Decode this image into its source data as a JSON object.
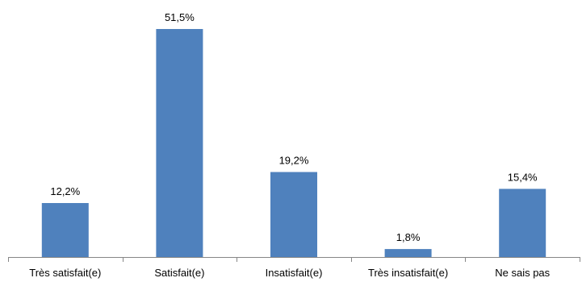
{
  "chart_data": {
    "type": "bar",
    "title": "",
    "xlabel": "",
    "ylabel": "",
    "categories": [
      "Très satisfait(e)",
      "Satisfait(e)",
      "Insatisfait(e)",
      "Très insatisfait(e)",
      "Ne sais pas"
    ],
    "values": [
      12.2,
      51.5,
      19.2,
      1.8,
      15.4
    ],
    "value_labels": [
      "12,2%",
      "51,5%",
      "19,2%",
      "1,8%",
      "15,4%"
    ],
    "ylim": [
      0,
      51.5
    ],
    "grid": false,
    "legend": "none",
    "bar_color": "#4f81bd",
    "axis_color": "#868686"
  }
}
